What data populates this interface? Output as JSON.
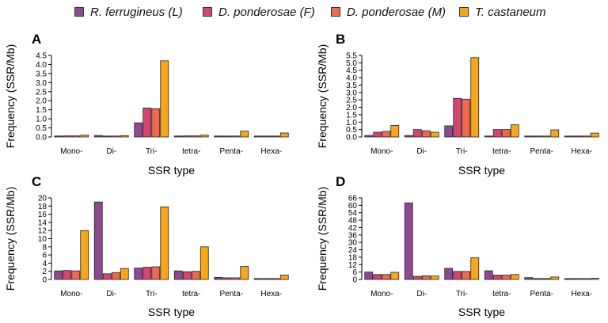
{
  "colors": {
    "R. ferrugineus (L)": "#8c4a92",
    "D. ponderosae (F)": "#d4466e",
    "D. ponderosae (M)": "#f06a50",
    "T. castaneum": "#f8a61b"
  },
  "legend": {
    "items": [
      {
        "label": "R. ferrugineus (L)"
      },
      {
        "label": "D. ponderosae (F)"
      },
      {
        "label": "D. ponderosae (M)"
      },
      {
        "label": "T. castaneum"
      }
    ]
  },
  "chart_data": [
    {
      "panel": "A",
      "type": "bar",
      "categories": [
        "Mono-",
        "Di-",
        "Tri-",
        "tetra-",
        "Penta-",
        "Hexa-"
      ],
      "series": [
        {
          "name": "R. ferrugineus (L)",
          "values": [
            0.05,
            0.08,
            0.78,
            0.05,
            0.02,
            0.03
          ]
        },
        {
          "name": "D. ponderosae (F)",
          "values": [
            0.06,
            0.04,
            1.6,
            0.06,
            0.02,
            0.04
          ]
        },
        {
          "name": "D. ponderosae (M)",
          "values": [
            0.06,
            0.04,
            1.56,
            0.06,
            0.02,
            0.04
          ]
        },
        {
          "name": "T. castaneum",
          "values": [
            0.1,
            0.08,
            4.2,
            0.1,
            0.32,
            0.22
          ]
        }
      ],
      "ylim": [
        0,
        4.5
      ],
      "yticks": [
        "0.0",
        "0.5",
        "1.0",
        "1.5",
        "2.0",
        "2.5",
        "3.0",
        "3.5",
        "4.0",
        "4.5"
      ],
      "xlabel": "SSR type",
      "ylabel": "Frequency (SSR/Mb)"
    },
    {
      "panel": "B",
      "type": "bar",
      "categories": [
        "Mono-",
        "Di-",
        "Tri-",
        "tetra-",
        "Penta-",
        "Hexa-"
      ],
      "series": [
        {
          "name": "R. ferrugineus (L)",
          "values": [
            0.1,
            0.1,
            0.75,
            0.05,
            0.02,
            0.03
          ]
        },
        {
          "name": "D. ponderosae (F)",
          "values": [
            0.32,
            0.5,
            2.6,
            0.5,
            0.06,
            0.06
          ]
        },
        {
          "name": "D. ponderosae (M)",
          "values": [
            0.38,
            0.42,
            2.55,
            0.5,
            0.06,
            0.06
          ]
        },
        {
          "name": "T. castaneum",
          "values": [
            0.78,
            0.32,
            5.35,
            0.82,
            0.48,
            0.26
          ]
        }
      ],
      "ylim": [
        0,
        5.5
      ],
      "yticks": [
        "0.0",
        "0.5",
        "1.0",
        "1.5",
        "2.0",
        "2.5",
        "3.0",
        "3.5",
        "4.0",
        "4.5",
        "5.0",
        "5.5"
      ],
      "xlabel": "SSR type",
      "ylabel": "Frequency (SSR/Mb)"
    },
    {
      "panel": "C",
      "type": "bar",
      "categories": [
        "Mono-",
        "Di-",
        "Tri-",
        "tetra-",
        "Penta-",
        "Hexa-"
      ],
      "series": [
        {
          "name": "R. ferrugineus (L)",
          "values": [
            2.1,
            19.0,
            2.8,
            2.1,
            0.5,
            0.1
          ]
        },
        {
          "name": "D. ponderosae (F)",
          "values": [
            2.2,
            1.4,
            3.0,
            1.9,
            0.4,
            0.1
          ]
        },
        {
          "name": "D. ponderosae (M)",
          "values": [
            2.1,
            1.7,
            3.1,
            2.0,
            0.4,
            0.1
          ]
        },
        {
          "name": "T. castaneum",
          "values": [
            12.0,
            2.7,
            17.8,
            8.0,
            3.2,
            1.1
          ]
        }
      ],
      "ylim": [
        0,
        20
      ],
      "yticks": [
        "0",
        "2",
        "4",
        "6",
        "8",
        "10",
        "12",
        "14",
        "16",
        "18",
        "20"
      ],
      "xlabel": "SSR type",
      "ylabel": "Frequency (SSR/Mb)"
    },
    {
      "panel": "D",
      "type": "bar",
      "categories": [
        "Mono-",
        "Di-",
        "Tri-",
        "tetra-",
        "Penta-",
        "Hexa-"
      ],
      "series": [
        {
          "name": "R. ferrugineus (L)",
          "values": [
            6.0,
            62.0,
            9.0,
            7.0,
            1.5,
            0.5
          ]
        },
        {
          "name": "D. ponderosae (F)",
          "values": [
            4.0,
            2.5,
            6.5,
            3.5,
            0.8,
            0.5
          ]
        },
        {
          "name": "D. ponderosae (M)",
          "values": [
            4.0,
            3.0,
            6.5,
            3.5,
            0.8,
            0.5
          ]
        },
        {
          "name": "T. castaneum",
          "values": [
            5.8,
            2.8,
            17.5,
            4.0,
            2.0,
            1.0
          ]
        }
      ],
      "ylim": [
        0,
        66
      ],
      "yticks": [
        "0",
        "6",
        "12",
        "18",
        "24",
        "30",
        "36",
        "42",
        "48",
        "54",
        "60",
        "66"
      ],
      "xlabel": "SSR type",
      "ylabel": "Frequency (SSR/Mb)"
    }
  ]
}
